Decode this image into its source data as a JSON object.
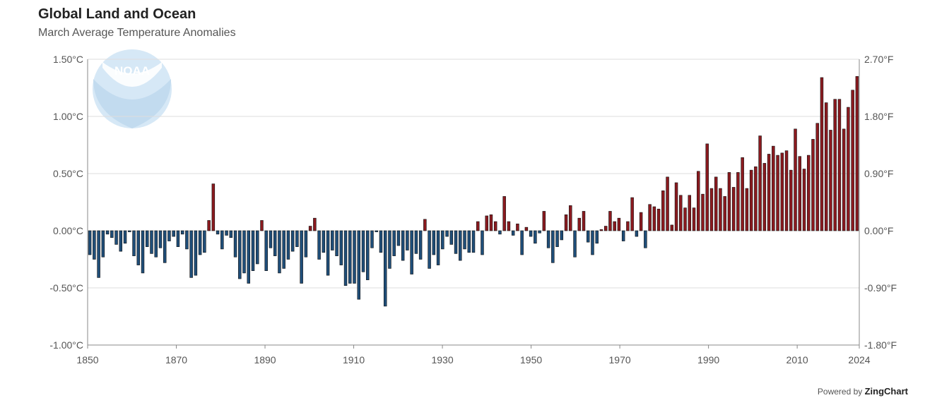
{
  "header": {
    "title": "Global Land and Ocean",
    "subtitle": "March Average Temperature Anomalies"
  },
  "logo": {
    "text": "NOAA"
  },
  "credit": {
    "prefix": "Powered by",
    "brand": "ZingChart"
  },
  "colors": {
    "positive": "#8b1a1f",
    "negative": "#1f4e79",
    "grid": "#dddddd",
    "axis": "#888888",
    "logo": "#cfe3f2"
  },
  "chart_data": {
    "type": "bar",
    "title": "Global Land and Ocean",
    "subtitle": "March Average Temperature Anomalies",
    "xlabel": "",
    "ylabel": "",
    "x_range": [
      1850,
      2024
    ],
    "ylim": [
      -1.0,
      1.5
    ],
    "y_ticks": [
      -1.0,
      -0.5,
      0.0,
      0.5,
      1.0,
      1.5
    ],
    "y_tick_labels_left": [
      "-1.00°C",
      "-0.50°C",
      "0.00°C",
      "0.50°C",
      "1.00°C",
      "1.50°C"
    ],
    "y_tick_labels_right": [
      "-1.80°F",
      "-0.90°F",
      "0.00°F",
      "0.90°F",
      "1.80°F",
      "2.70°F"
    ],
    "x_ticks": [
      1850,
      1870,
      1890,
      1910,
      1930,
      1950,
      1970,
      1990,
      2010,
      2024
    ],
    "x_tick_labels": [
      "1850",
      "1870",
      "1890",
      "1910",
      "1930",
      "1950",
      "1970",
      "1990",
      "2010",
      "2024"
    ],
    "grid": true,
    "series": [
      {
        "x": [
          1850,
          1851,
          1852,
          1853,
          1854,
          1855,
          1856,
          1857,
          1858,
          1859,
          1860,
          1861,
          1862,
          1863,
          1864,
          1865,
          1866,
          1867,
          1868,
          1869,
          1870,
          1871,
          1872,
          1873,
          1874,
          1875,
          1876,
          1877,
          1878,
          1879,
          1880,
          1881,
          1882,
          1883,
          1884,
          1885,
          1886,
          1887,
          1888,
          1889,
          1890,
          1891,
          1892,
          1893,
          1894,
          1895,
          1896,
          1897,
          1898,
          1899,
          1900,
          1901,
          1902,
          1903,
          1904,
          1905,
          1906,
          1907,
          1908,
          1909,
          1910,
          1911,
          1912,
          1913,
          1914,
          1915,
          1916,
          1917,
          1918,
          1919,
          1920,
          1921,
          1922,
          1923,
          1924,
          1925,
          1926,
          1927,
          1928,
          1929,
          1930,
          1931,
          1932,
          1933,
          1934,
          1935,
          1936,
          1937,
          1938,
          1939,
          1940,
          1941,
          1942,
          1943,
          1944,
          1945,
          1946,
          1947,
          1948,
          1949,
          1950,
          1951,
          1952,
          1953,
          1954,
          1955,
          1956,
          1957,
          1958,
          1959,
          1960,
          1961,
          1962,
          1963,
          1964,
          1965,
          1966,
          1967,
          1968,
          1969,
          1970,
          1971,
          1972,
          1973,
          1974,
          1975,
          1976,
          1977,
          1978,
          1979,
          1980,
          1981,
          1982,
          1983,
          1984,
          1985,
          1986,
          1987,
          1988,
          1989,
          1990,
          1991,
          1992,
          1993,
          1994,
          1995,
          1996,
          1997,
          1998,
          1999,
          2000,
          2001,
          2002,
          2003,
          2004,
          2005,
          2006,
          2007,
          2008,
          2009,
          2010,
          2011,
          2012,
          2013,
          2014,
          2015,
          2016,
          2017,
          2018,
          2019,
          2020,
          2021,
          2022,
          2023,
          2024
        ],
        "values": [
          -0.21,
          -0.25,
          -0.41,
          -0.23,
          -0.03,
          -0.06,
          -0.12,
          -0.18,
          -0.11,
          -0.01,
          -0.22,
          -0.3,
          -0.37,
          -0.14,
          -0.2,
          -0.23,
          -0.15,
          -0.28,
          -0.09,
          -0.05,
          -0.14,
          -0.03,
          -0.16,
          -0.41,
          -0.39,
          -0.21,
          -0.19,
          0.09,
          0.41,
          -0.03,
          -0.16,
          -0.04,
          -0.06,
          -0.23,
          -0.42,
          -0.37,
          -0.46,
          -0.35,
          -0.29,
          0.09,
          -0.35,
          -0.15,
          -0.22,
          -0.37,
          -0.33,
          -0.25,
          -0.18,
          -0.14,
          -0.46,
          -0.23,
          0.04,
          0.11,
          -0.25,
          -0.19,
          -0.39,
          -0.17,
          -0.22,
          -0.3,
          -0.48,
          -0.46,
          -0.46,
          -0.6,
          -0.36,
          -0.43,
          -0.15,
          -0.01,
          -0.19,
          -0.66,
          -0.33,
          -0.22,
          -0.13,
          -0.26,
          -0.17,
          -0.38,
          -0.2,
          -0.25,
          0.1,
          -0.33,
          -0.21,
          -0.3,
          -0.16,
          -0.05,
          -0.12,
          -0.2,
          -0.26,
          -0.16,
          -0.19,
          -0.19,
          0.08,
          -0.21,
          0.13,
          0.14,
          0.08,
          -0.03,
          0.3,
          0.08,
          -0.04,
          0.06,
          -0.21,
          0.03,
          -0.05,
          -0.11,
          -0.02,
          0.17,
          -0.15,
          -0.28,
          -0.14,
          -0.08,
          0.14,
          0.22,
          -0.23,
          0.11,
          0.17,
          -0.1,
          -0.21,
          -0.11,
          0.01,
          0.04,
          0.17,
          0.08,
          0.11,
          -0.09,
          0.08,
          0.29,
          -0.05,
          0.16,
          -0.15,
          0.23,
          0.21,
          0.19,
          0.35,
          0.47,
          0.05,
          0.42,
          0.31,
          0.2,
          0.31,
          0.2,
          0.52,
          0.32,
          0.76,
          0.37,
          0.47,
          0.37,
          0.3,
          0.51,
          0.38,
          0.51,
          0.64,
          0.37,
          0.53,
          0.56,
          0.83,
          0.59,
          0.67,
          0.74,
          0.66,
          0.68,
          0.7,
          0.53,
          0.89,
          0.65,
          0.54,
          0.66,
          0.8,
          0.94,
          1.34,
          1.12,
          0.88,
          1.15,
          1.15,
          0.89,
          1.08,
          1.23,
          1.35
        ]
      }
    ]
  }
}
